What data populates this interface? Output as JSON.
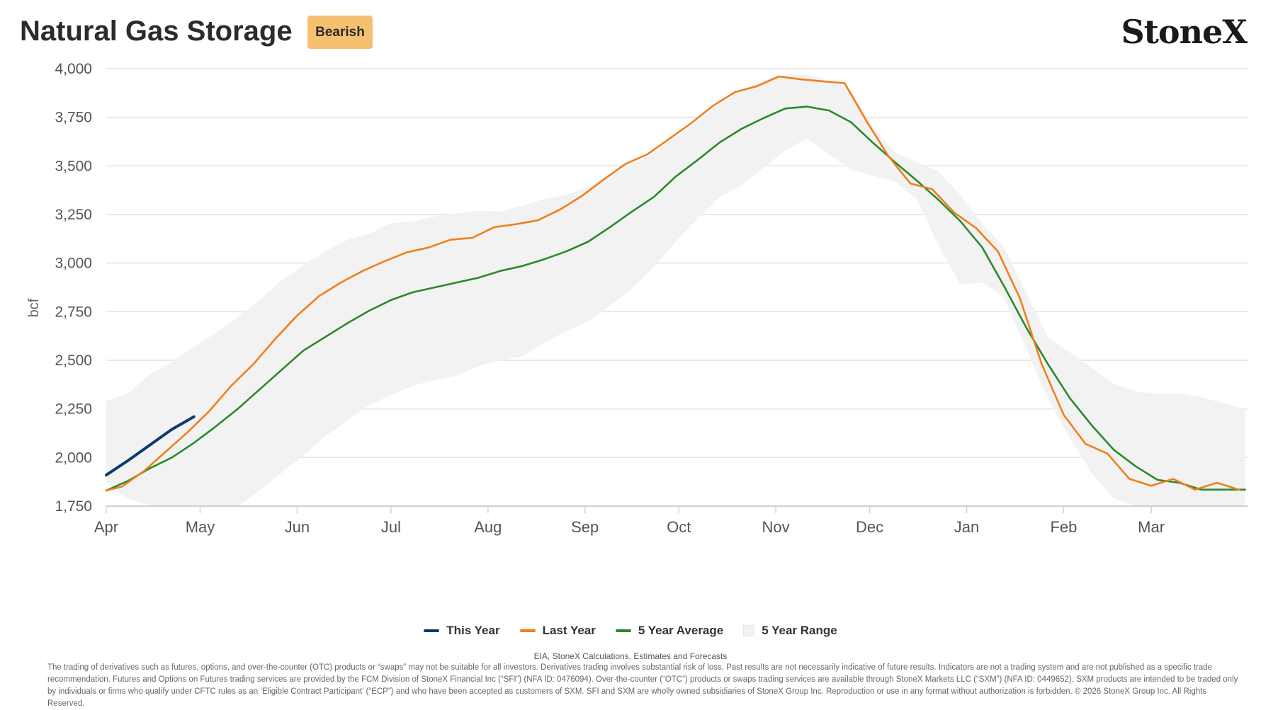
{
  "header": {
    "title": "Natural Gas Storage",
    "badge": "Bearish",
    "logo": "StoneX"
  },
  "chart_data": {
    "type": "line",
    "ylabel": "bcf",
    "ylim": [
      1750,
      4000
    ],
    "yticks": [
      1750,
      2000,
      2250,
      2500,
      2750,
      3000,
      3250,
      3500,
      3750,
      4000
    ],
    "ytick_labels": [
      "1,750",
      "2,000",
      "2,250",
      "2,500",
      "2,750",
      "3,000",
      "3,250",
      "3,500",
      "3,750",
      "4,000"
    ],
    "month_labels": [
      "Apr",
      "May",
      "Jun",
      "Jul",
      "Aug",
      "Sep",
      "Oct",
      "Nov",
      "Dec",
      "Jan",
      "Feb",
      "Mar"
    ],
    "grid": true,
    "legend_position": "bottom",
    "series": [
      {
        "name": "This Year",
        "color": "#0b3b6e",
        "x": [
          "Apr 1",
          "Apr 8",
          "Apr 15",
          "Apr 22",
          "Apr 29"
        ],
        "values": [
          1910,
          1985,
          2065,
          2145,
          2210
        ]
      },
      {
        "name": "Last Year",
        "color": "#f07f1e",
        "x": [
          "Apr 1",
          "Apr 6",
          "Apr 13",
          "Apr 20",
          "Apr 27",
          "May 4",
          "May 11",
          "May 18",
          "May 25",
          "Jun 1",
          "Jun 8",
          "Jun 15",
          "Jun 22",
          "Jun 29",
          "Jul 6",
          "Jul 13",
          "Jul 20",
          "Jul 27",
          "Aug 3",
          "Aug 10",
          "Aug 17",
          "Aug 24",
          "Aug 31",
          "Sep 7",
          "Sep 14",
          "Sep 21",
          "Sep 28",
          "Oct 5",
          "Oct 12",
          "Oct 19",
          "Oct 26",
          "Nov 2",
          "Nov 9",
          "Nov 16",
          "Nov 23",
          "Nov 30",
          "Dec 7",
          "Dec 14",
          "Dec 21",
          "Dec 28",
          "Jan 4",
          "Jan 11",
          "Jan 18",
          "Jan 25",
          "Feb 1",
          "Feb 8",
          "Feb 15",
          "Feb 22",
          "Mar 1",
          "Mar 8",
          "Mar 15",
          "Mar 22",
          "Mar 29"
        ],
        "values": [
          1830,
          1850,
          1930,
          2030,
          2130,
          2240,
          2370,
          2480,
          2610,
          2730,
          2830,
          2900,
          2960,
          3010,
          3055,
          3080,
          3120,
          3130,
          3185,
          3200,
          3220,
          3275,
          3345,
          3430,
          3510,
          3560,
          3640,
          3720,
          3810,
          3880,
          3910,
          3960,
          3945,
          3935,
          3925,
          3730,
          3550,
          3410,
          3380,
          3260,
          3180,
          3060,
          2820,
          2480,
          2220,
          2070,
          2020,
          1890,
          1855,
          1890,
          1835,
          1870,
          1835
        ]
      },
      {
        "name": "5 Year Average",
        "color": "#2a8a2e",
        "x": [
          "Apr 1",
          "Apr 8",
          "Apr 15",
          "Apr 22",
          "Apr 29",
          "May 6",
          "May 13",
          "May 20",
          "May 27",
          "Jun 3",
          "Jun 10",
          "Jun 17",
          "Jun 24",
          "Jul 1",
          "Jul 8",
          "Jul 15",
          "Jul 22",
          "Jul 29",
          "Aug 5",
          "Aug 12",
          "Aug 19",
          "Aug 26",
          "Sep 2",
          "Sep 9",
          "Sep 16",
          "Sep 23",
          "Sep 30",
          "Oct 7",
          "Oct 14",
          "Oct 21",
          "Oct 28",
          "Nov 4",
          "Nov 11",
          "Nov 18",
          "Nov 25",
          "Dec 2",
          "Dec 9",
          "Dec 16",
          "Dec 23",
          "Dec 30",
          "Jan 6",
          "Jan 13",
          "Jan 20",
          "Jan 27",
          "Feb 3",
          "Feb 10",
          "Feb 17",
          "Feb 24",
          "Mar 3",
          "Mar 10",
          "Mar 17",
          "Mar 24",
          "Mar 31"
        ],
        "values": [
          1830,
          1880,
          1945,
          2000,
          2075,
          2160,
          2250,
          2350,
          2450,
          2550,
          2620,
          2690,
          2755,
          2810,
          2850,
          2875,
          2900,
          2925,
          2960,
          2985,
          3020,
          3060,
          3110,
          3185,
          3265,
          3340,
          3445,
          3530,
          3620,
          3690,
          3745,
          3795,
          3805,
          3785,
          3725,
          3620,
          3520,
          3425,
          3325,
          3215,
          3080,
          2880,
          2670,
          2480,
          2305,
          2165,
          2040,
          1955,
          1885,
          1870,
          1835,
          1835,
          1835
        ]
      }
    ],
    "range": {
      "name": "5 Year Range",
      "color": "#f2f2f2",
      "x": [
        "Apr 1",
        "Apr 8",
        "Apr 15",
        "Apr 22",
        "Apr 29",
        "May 6",
        "May 13",
        "May 20",
        "May 27",
        "Jun 3",
        "Jun 10",
        "Jun 17",
        "Jun 24",
        "Jul 1",
        "Jul 8",
        "Jul 15",
        "Jul 22",
        "Jul 29",
        "Aug 5",
        "Aug 12",
        "Aug 19",
        "Aug 26",
        "Sep 2",
        "Sep 9",
        "Sep 16",
        "Sep 23",
        "Sep 30",
        "Oct 7",
        "Oct 14",
        "Oct 21",
        "Oct 28",
        "Nov 4",
        "Nov 11",
        "Nov 18",
        "Nov 25",
        "Dec 2",
        "Dec 9",
        "Dec 16",
        "Dec 23",
        "Dec 30",
        "Jan 6",
        "Jan 13",
        "Jan 20",
        "Jan 27",
        "Feb 3",
        "Feb 10",
        "Feb 17",
        "Feb 24",
        "Mar 3",
        "Mar 10",
        "Mar 17",
        "Mar 24",
        "Mar 31"
      ],
      "upper": [
        2290,
        2330,
        2430,
        2490,
        2570,
        2640,
        2720,
        2810,
        2910,
        2990,
        3060,
        3120,
        3150,
        3205,
        3215,
        3240,
        3255,
        3270,
        3265,
        3295,
        3330,
        3350,
        3390,
        3450,
        3510,
        3565,
        3650,
        3730,
        3820,
        3890,
        3940,
        3970,
        3970,
        3940,
        3890,
        3700,
        3570,
        3520,
        3470,
        3350,
        3200,
        3080,
        2850,
        2620,
        2540,
        2460,
        2380,
        2340,
        2330,
        2330,
        2310,
        2280,
        2250
      ],
      "lower": [
        1870,
        1790,
        1740,
        1700,
        1680,
        1690,
        1750,
        1830,
        1920,
        2010,
        2110,
        2190,
        2270,
        2320,
        2370,
        2400,
        2420,
        2470,
        2500,
        2520,
        2590,
        2650,
        2700,
        2780,
        2870,
        2980,
        3110,
        3230,
        3340,
        3400,
        3490,
        3580,
        3640,
        3560,
        3480,
        3450,
        3420,
        3330,
        3090,
        2890,
        2900,
        2820,
        2560,
        2300,
        2100,
        1920,
        1790,
        1680,
        1640,
        1620,
        1610,
        1600,
        1600
      ]
    }
  },
  "legend": {
    "this_year": "This Year",
    "last_year": "Last Year",
    "five_year_avg": "5 Year Average",
    "five_year_range": "5 Year Range"
  },
  "footer": {
    "source": "EIA, StoneX Calculations, Estimates and Forecasts",
    "disclaimer": "The trading of derivatives such as futures, options, and over-the-counter (OTC) products or “swaps” may not be suitable for all investors. Derivatives trading involves substantial risk of loss. Past results are not necessarily indicative of future results. Indicators are not a trading system and are not published as a specific trade recommendation. Futures and Options on Futures trading services are provided by the FCM Division of StoneX Financial Inc (“SFI”) (NFA ID: 0476094). Over-the-counter (“OTC”) products or swaps trading services are available through StoneX Markets LLC (“SXM”) (NFA ID: 0449652). SXM products are intended to be traded only by individuals or firms who qualify under CFTC rules as an ‘Eligible Contract Participant’ (“ECP”) and who have been accepted as customers of SXM. SFI and SXM are wholly owned subsidiaries of StoneX Group Inc. Reproduction or use in any format without authorization is forbidden. © 2026 StoneX Group Inc. All Rights Reserved."
  }
}
